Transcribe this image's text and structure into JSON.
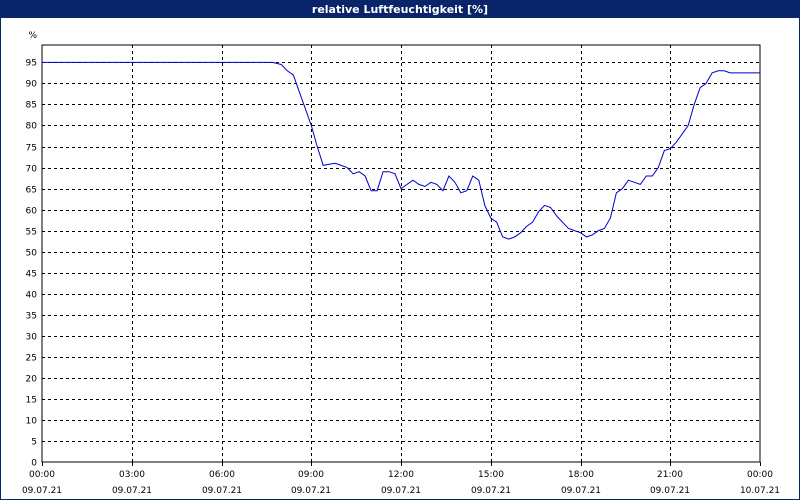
{
  "window": {
    "title": "relative Luftfeuchtigkeit [%]"
  },
  "chart_data": {
    "type": "line",
    "title": "relative Luftfeuchtigkeit [%]",
    "ylabel": "%",
    "xlabel": "",
    "ylim": [
      0,
      95
    ],
    "xlim": [
      0,
      24
    ],
    "y_ticks": [
      0,
      5,
      10,
      15,
      20,
      25,
      30,
      35,
      40,
      45,
      50,
      55,
      60,
      65,
      70,
      75,
      80,
      85,
      90,
      95
    ],
    "x_ticks": [
      {
        "x": 0,
        "time": "00:00",
        "date": "09.07.21"
      },
      {
        "x": 3,
        "time": "03:00",
        "date": "09.07.21"
      },
      {
        "x": 6,
        "time": "06:00",
        "date": "09.07.21"
      },
      {
        "x": 9,
        "time": "09:00",
        "date": "09.07.21"
      },
      {
        "x": 12,
        "time": "12:00",
        "date": "09.07.21"
      },
      {
        "x": 15,
        "time": "15:00",
        "date": "09.07.21"
      },
      {
        "x": 18,
        "time": "18:00",
        "date": "09.07.21"
      },
      {
        "x": 21,
        "time": "21:00",
        "date": "09.07.21"
      },
      {
        "x": 24,
        "time": "00:00",
        "date": "10.07.21"
      }
    ],
    "grid": true,
    "series_color": "#0000cc",
    "series": [
      {
        "x": [
          0,
          1,
          2,
          3,
          4,
          5,
          6,
          7,
          7.7,
          8.0,
          8.2,
          8.4,
          8.6,
          8.8,
          9.0,
          9.2,
          9.4,
          9.6,
          9.8,
          10.0,
          10.2,
          10.4,
          10.6,
          10.8,
          11.0,
          11.2,
          11.4,
          11.6,
          11.8,
          12.0,
          12.2,
          12.4,
          12.6,
          12.8,
          13.0,
          13.2,
          13.4,
          13.6,
          13.8,
          14.0,
          14.2,
          14.4,
          14.6,
          14.8,
          15.0,
          15.2,
          15.4,
          15.6,
          15.8,
          16.0,
          16.2,
          16.4,
          16.6,
          16.8,
          17.0,
          17.2,
          17.4,
          17.6,
          17.8,
          18.0,
          18.2,
          18.4,
          18.6,
          18.8,
          19.0,
          19.2,
          19.4,
          19.6,
          19.8,
          20.0,
          20.2,
          20.4,
          20.6,
          20.8,
          21.0,
          21.2,
          21.4,
          21.6,
          21.8,
          22.0,
          22.2,
          22.4,
          22.6,
          22.8,
          23.0,
          23.2,
          23.4,
          23.6,
          23.8,
          24.0
        ],
        "values": [
          95,
          95,
          95,
          95,
          95,
          95,
          95,
          95,
          95,
          94.5,
          93,
          92,
          88,
          84,
          80,
          75,
          70.5,
          70.8,
          71,
          70.5,
          70,
          68.5,
          69,
          68,
          64.5,
          64.5,
          69,
          69,
          68.5,
          65,
          66,
          67,
          66,
          65.5,
          66.5,
          66,
          64.5,
          68,
          66.5,
          64,
          64.5,
          68,
          67,
          61,
          58,
          57,
          53.5,
          53,
          53.5,
          54.5,
          56,
          57,
          59.5,
          61,
          60.5,
          58.5,
          57,
          55.5,
          55,
          54.5,
          53.5,
          54,
          55,
          55.5,
          58,
          64,
          65,
          67,
          66.5,
          66,
          68,
          68,
          70,
          74,
          74.5,
          76,
          78,
          80,
          85,
          89,
          90,
          92.5,
          93,
          93,
          92.5,
          92.5,
          92.5,
          92.5,
          92.5,
          92.5
        ]
      }
    ]
  }
}
